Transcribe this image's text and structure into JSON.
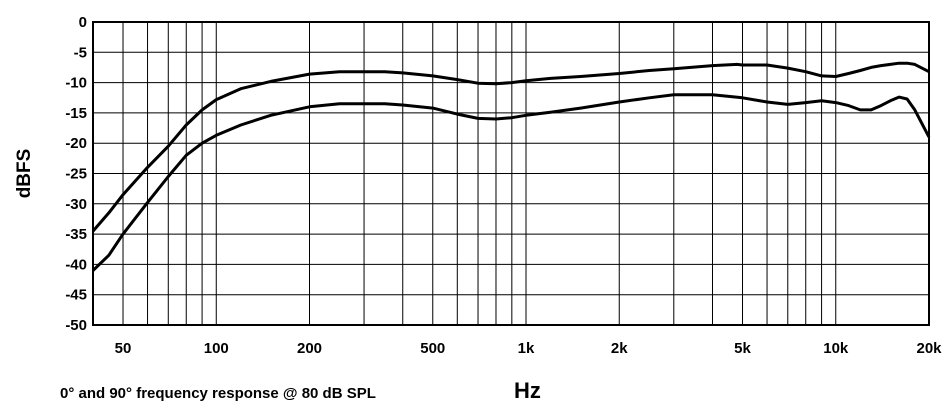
{
  "chart_data": {
    "type": "line",
    "caption": "0° and 90° frequency response @ 80 dB SPL",
    "xlabel": "Hz",
    "ylabel": "dBFS",
    "xscale": "log",
    "xlim": [
      40,
      20000
    ],
    "ylim": [
      -50,
      0
    ],
    "grid": true,
    "xticks": [
      {
        "value": 50,
        "label": "50"
      },
      {
        "value": 100,
        "label": "100"
      },
      {
        "value": 200,
        "label": "200"
      },
      {
        "value": 500,
        "label": "500"
      },
      {
        "value": 1000,
        "label": "1k"
      },
      {
        "value": 2000,
        "label": "2k"
      },
      {
        "value": 5000,
        "label": "5k"
      },
      {
        "value": 10000,
        "label": "10k"
      },
      {
        "value": 20000,
        "label": "20k"
      }
    ],
    "yticks": [
      0,
      -5,
      -10,
      -15,
      -20,
      -25,
      -30,
      -35,
      -40,
      -45,
      -50
    ],
    "series": [
      {
        "x": [
          40,
          45,
          50,
          60,
          70,
          80,
          90,
          100,
          120,
          150,
          200,
          250,
          300,
          350,
          400,
          500,
          600,
          700,
          800,
          900,
          1000,
          1200,
          1500,
          2000,
          2500,
          3000,
          4000,
          4800,
          5000,
          6000,
          7000,
          8000,
          9000,
          10000,
          11000,
          12000,
          13000,
          14000,
          15000,
          16000,
          17000,
          18000,
          20000
        ],
        "y": [
          -34.5,
          -31.5,
          -28.5,
          -24,
          -20.5,
          -17,
          -14.5,
          -12.8,
          -11,
          -9.8,
          -8.6,
          -8.2,
          -8.2,
          -8.2,
          -8.4,
          -8.9,
          -9.5,
          -10.1,
          -10.2,
          -10,
          -9.7,
          -9.3,
          -9,
          -8.5,
          -8,
          -7.7,
          -7.2,
          -7,
          -7.1,
          -7.1,
          -7.6,
          -8.2,
          -8.9,
          -9,
          -8.5,
          -8,
          -7.5,
          -7.2,
          -7,
          -6.8,
          -6.8,
          -7,
          -8.2
        ]
      },
      {
        "x": [
          40,
          45,
          50,
          60,
          70,
          80,
          90,
          100,
          120,
          150,
          200,
          250,
          300,
          350,
          400,
          500,
          600,
          700,
          800,
          900,
          1000,
          1200,
          1500,
          2000,
          2500,
          3000,
          4000,
          5000,
          6000,
          7000,
          8000,
          9000,
          10000,
          11000,
          12000,
          13000,
          14000,
          15000,
          16000,
          17000,
          18000,
          20000
        ],
        "y": [
          -41,
          -38.5,
          -35,
          -29.8,
          -25.5,
          -22,
          -20,
          -18.7,
          -17,
          -15.4,
          -14,
          -13.5,
          -13.5,
          -13.5,
          -13.7,
          -14.2,
          -15.2,
          -15.9,
          -16,
          -15.8,
          -15.4,
          -14.9,
          -14.2,
          -13.2,
          -12.5,
          -12,
          -12,
          -12.5,
          -13.2,
          -13.6,
          -13.3,
          -13,
          -13.3,
          -13.8,
          -14.5,
          -14.5,
          -13.8,
          -13,
          -12.4,
          -12.7,
          -14.5,
          -19
        ]
      }
    ]
  }
}
